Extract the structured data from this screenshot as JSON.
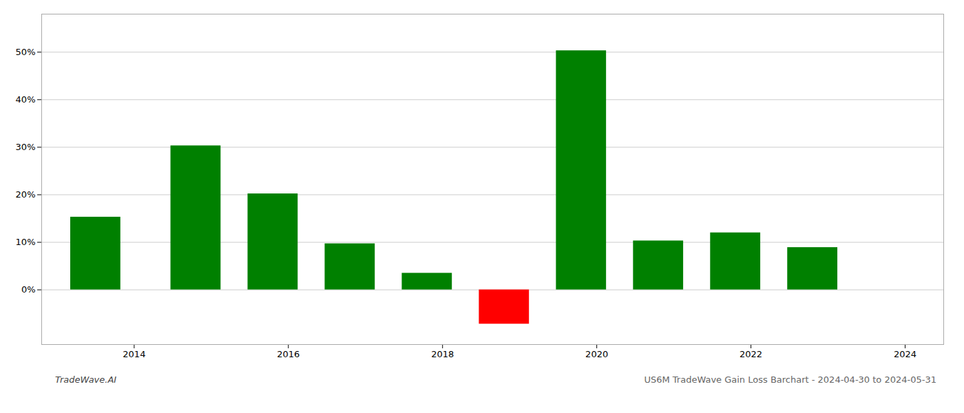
{
  "chart_data": {
    "type": "bar",
    "x": [
      2013.5,
      2014.8,
      2015.8,
      2016.8,
      2017.8,
      2018.8,
      2019.8,
      2020.8,
      2021.8,
      2022.8
    ],
    "values": [
      0.153,
      0.303,
      0.202,
      0.097,
      0.035,
      -0.072,
      0.503,
      0.103,
      0.12,
      0.089
    ],
    "colors": [
      "#008000",
      "#008000",
      "#008000",
      "#008000",
      "#008000",
      "#ff0000",
      "#008000",
      "#008000",
      "#008000",
      "#008000"
    ],
    "xlim": [
      2012.8,
      2024.5
    ],
    "xticks": [
      2014,
      2016,
      2018,
      2020,
      2022,
      2024
    ],
    "ylim": [
      -0.115,
      0.58
    ],
    "yticks": [
      {
        "value": 0.0,
        "label": "0%"
      },
      {
        "value": 0.1,
        "label": "10%"
      },
      {
        "value": 0.2,
        "label": "20%"
      },
      {
        "value": 0.3,
        "label": "30%"
      },
      {
        "value": 0.4,
        "label": "40%"
      },
      {
        "value": 0.5,
        "label": "50%"
      }
    ],
    "grid": true,
    "annotations": [
      "TradeWave.AI",
      "US6M TradeWave Gain Loss Barchart - 2024-04-30 to 2024-05-31"
    ]
  }
}
